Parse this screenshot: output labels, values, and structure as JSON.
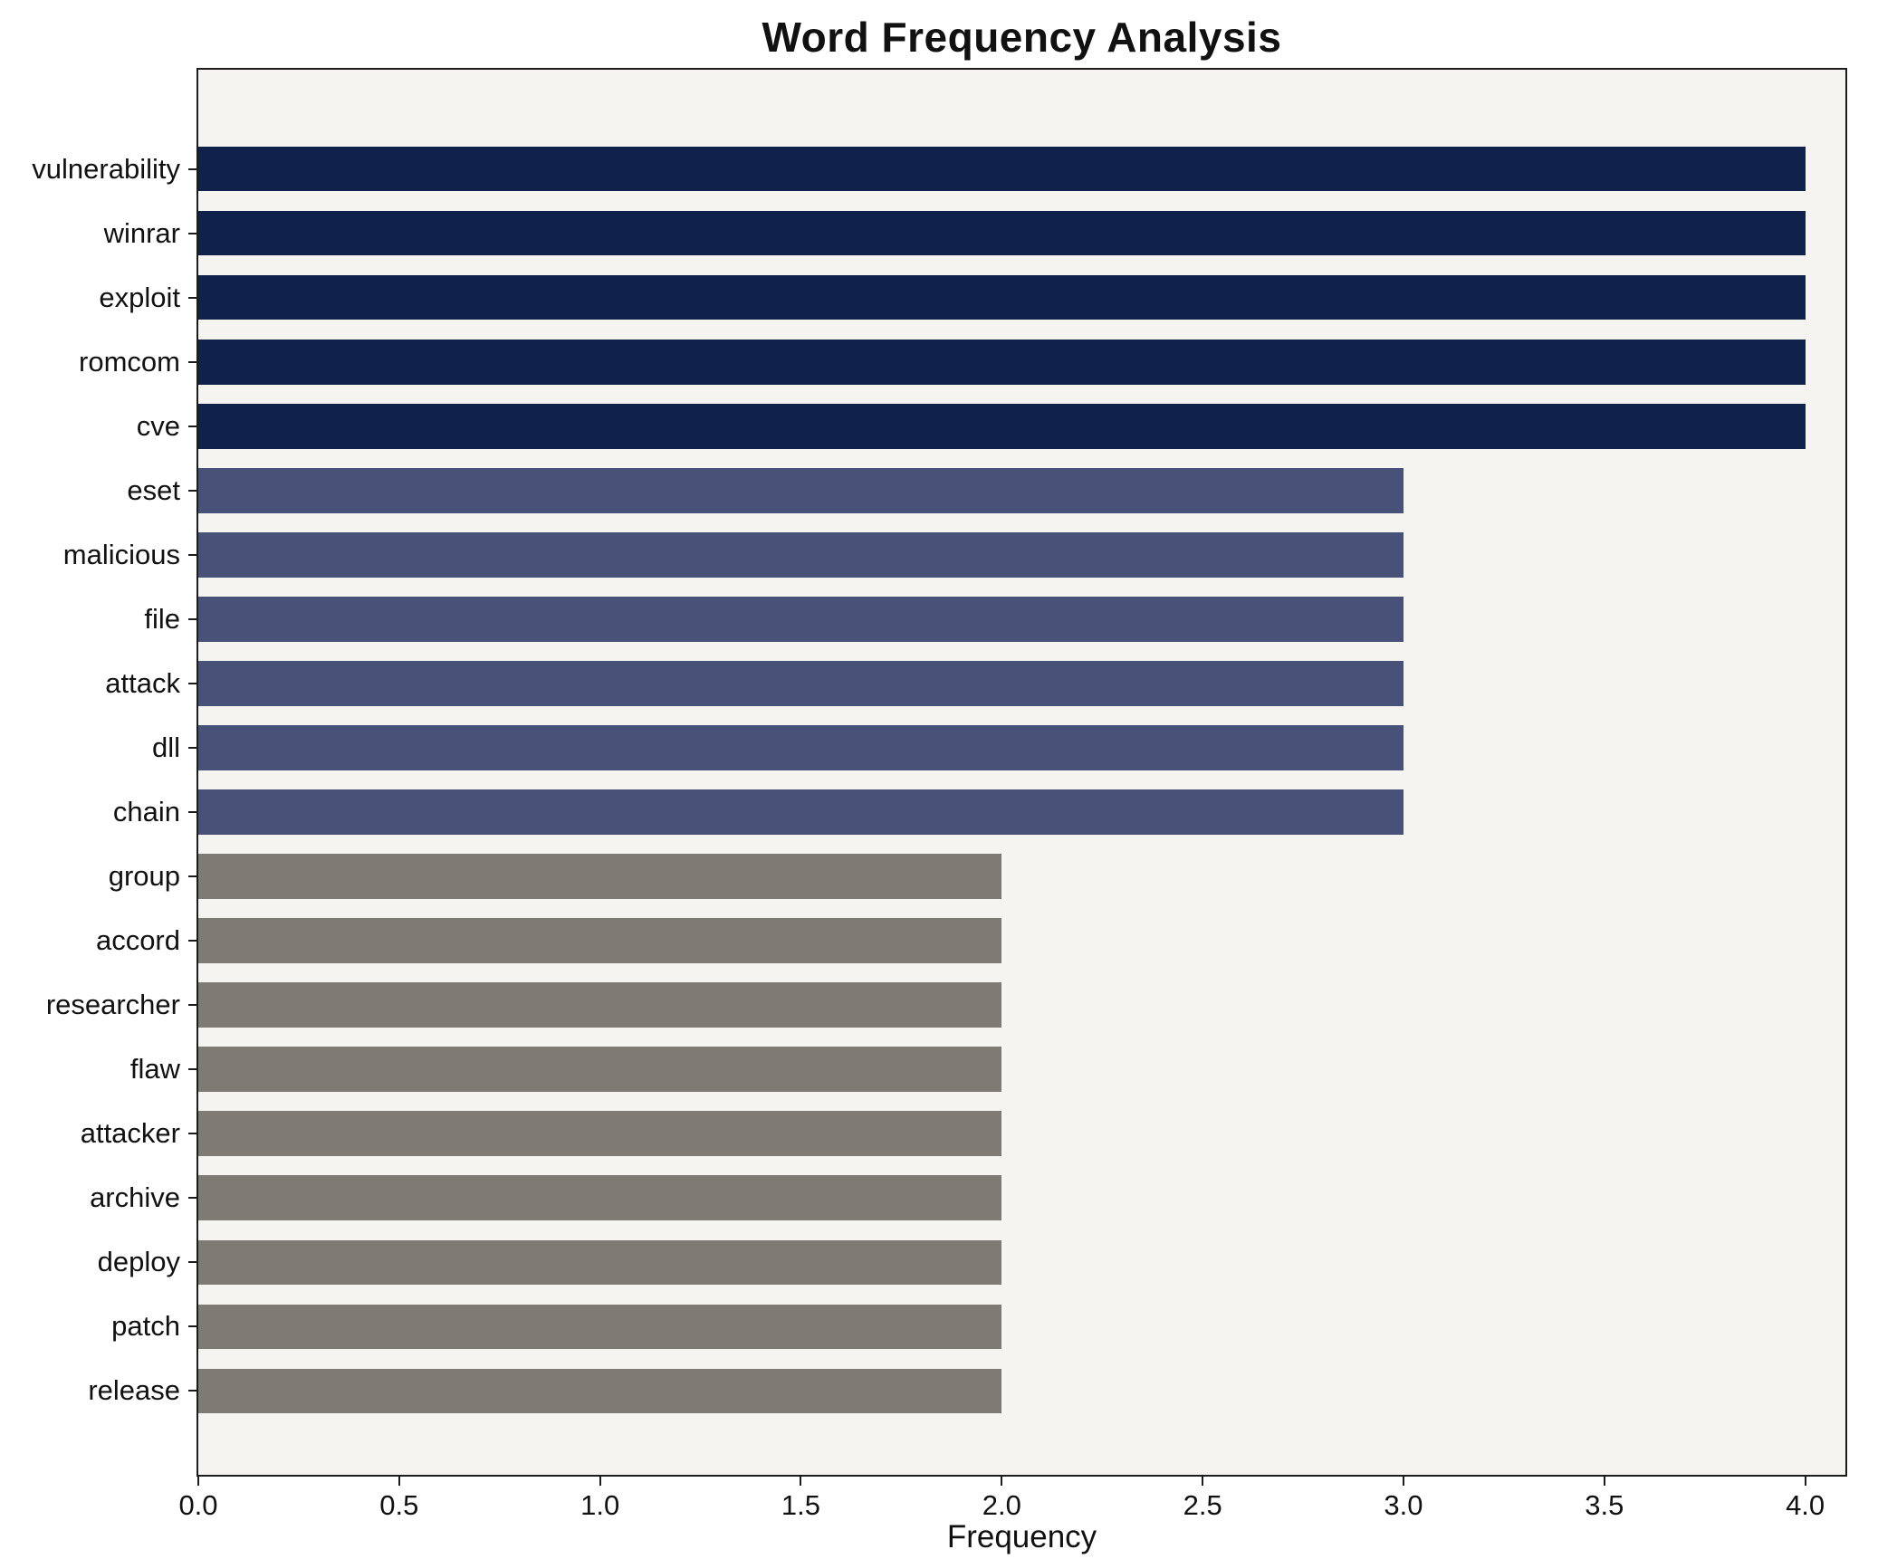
{
  "figure": {
    "title": "Word Frequency Analysis",
    "xlabel": "Frequency"
  },
  "chart_data": {
    "type": "bar",
    "orientation": "horizontal",
    "title": "Word Frequency Analysis",
    "xlabel": "Frequency",
    "ylabel": "",
    "xlim": [
      0,
      4.1
    ],
    "xtick_labels": [
      "0.0",
      "0.5",
      "1.0",
      "1.5",
      "2.0",
      "2.5",
      "3.0",
      "3.5",
      "4.0"
    ],
    "grid": false,
    "legend": null,
    "plot_background": "#f5f4f1",
    "colors_by_value": {
      "4": "#10214b",
      "3": "#485178",
      "2": "#7e7b75"
    },
    "categories": [
      "vulnerability",
      "winrar",
      "exploit",
      "romcom",
      "cve",
      "eset",
      "malicious",
      "file",
      "attack",
      "dll",
      "chain",
      "group",
      "accord",
      "researcher",
      "flaw",
      "attacker",
      "archive",
      "deploy",
      "patch",
      "release"
    ],
    "values": [
      4,
      4,
      4,
      4,
      4,
      3,
      3,
      3,
      3,
      3,
      3,
      2,
      2,
      2,
      2,
      2,
      2,
      2,
      2,
      2
    ]
  }
}
